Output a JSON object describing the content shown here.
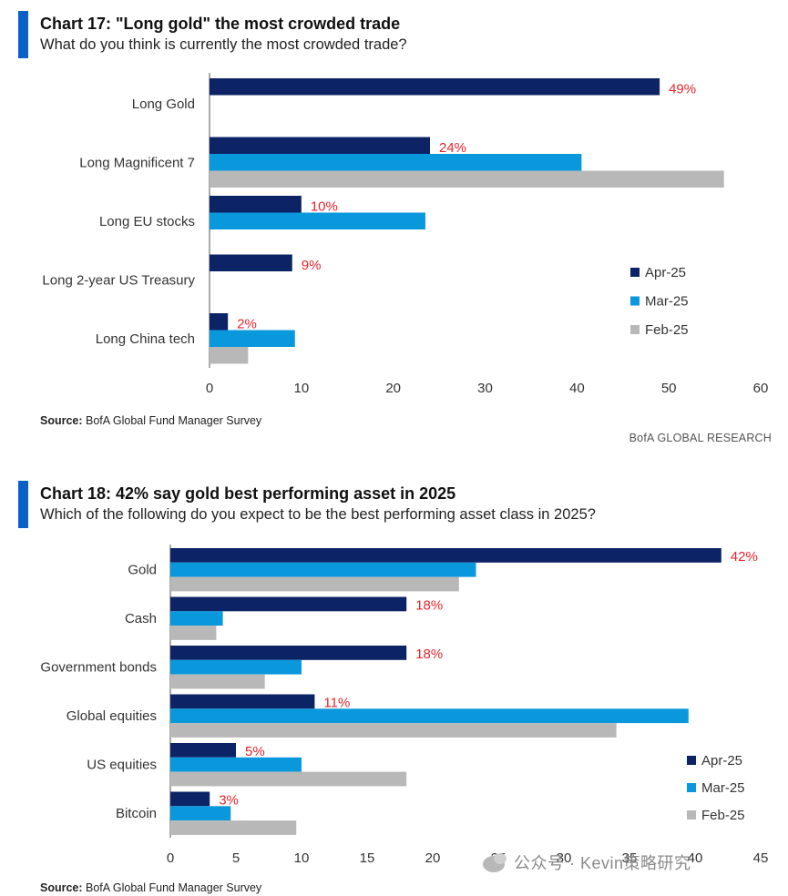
{
  "chart_data": [
    {
      "type": "bar",
      "orientation": "horizontal",
      "title": "Chart 17: \"Long gold\" the most crowded trade",
      "subtitle": "What do you think is currently the most crowded trade?",
      "categories": [
        "Long Gold",
        "Long Magnificent 7",
        "Long EU stocks",
        "Long 2-year US Treasury",
        "Long China tech"
      ],
      "series": [
        {
          "name": "Apr-25",
          "color": "#0c2466",
          "values": [
            49,
            24,
            10,
            9,
            2
          ]
        },
        {
          "name": "Mar-25",
          "color": "#0a98dc",
          "values": [
            null,
            40.5,
            23.5,
            null,
            9.3
          ]
        },
        {
          "name": "Feb-25",
          "color": "#b8b8b8",
          "values": [
            null,
            56,
            null,
            null,
            4.2
          ]
        }
      ],
      "data_labels": [
        "49%",
        "24%",
        "10%",
        "9%",
        "2%"
      ],
      "xlim": [
        0,
        60
      ],
      "xticks": [
        "0",
        "10",
        "20",
        "30",
        "40",
        "50",
        "60"
      ],
      "xlabel": "",
      "ylabel": "",
      "legend_position": "right",
      "source_prefix": "Source:",
      "source_text": " BofA Global Fund Manager Survey",
      "brand": "BofA GLOBAL RESEARCH"
    },
    {
      "type": "bar",
      "orientation": "horizontal",
      "title": "Chart 18: 42% say gold best performing asset in 2025",
      "subtitle": "Which of the following do you expect to be the best performing asset class in 2025?",
      "categories": [
        "Gold",
        "Cash",
        "Government bonds",
        "Global equities",
        "US equities",
        "Bitcoin"
      ],
      "series": [
        {
          "name": "Apr-25",
          "color": "#0c2466",
          "values": [
            42,
            18,
            18,
            11,
            5,
            3
          ]
        },
        {
          "name": "Mar-25",
          "color": "#0a98dc",
          "values": [
            23.3,
            4,
            10,
            39.5,
            10,
            4.6
          ]
        },
        {
          "name": "Feb-25",
          "color": "#b8b8b8",
          "values": [
            22,
            3.5,
            7.2,
            34,
            18,
            9.6
          ]
        }
      ],
      "data_labels": [
        "42%",
        "18%",
        "18%",
        "11%",
        "5%",
        "3%"
      ],
      "xlim": [
        0,
        45
      ],
      "xticks": [
        "0",
        "5",
        "10",
        "15",
        "20",
        "25",
        "30",
        "35",
        "40",
        "45"
      ],
      "xlabel": "",
      "ylabel": "",
      "legend_position": "right",
      "source_prefix": "Source:",
      "source_text": " BofA Global Fund Manager Survey"
    }
  ],
  "watermark": "公众号 · Kevin策略研究"
}
